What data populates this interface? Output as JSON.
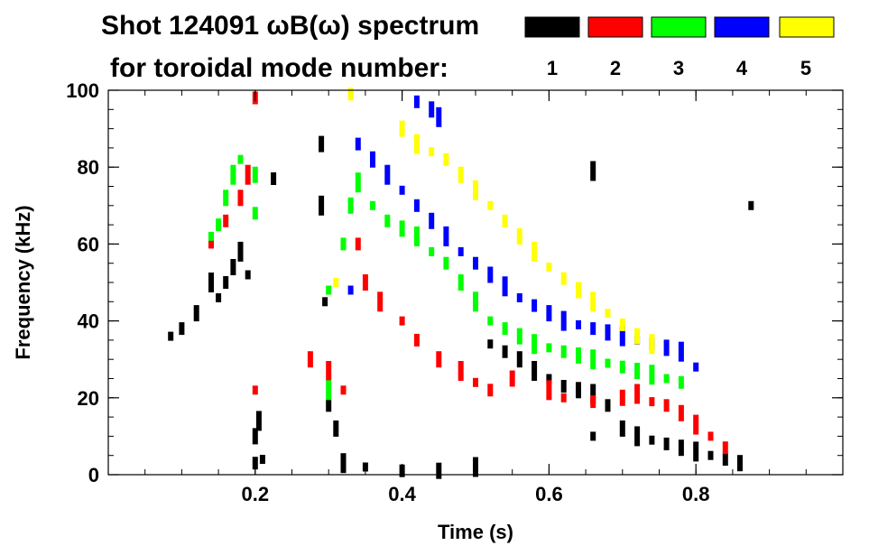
{
  "chart_data": {
    "type": "heatmap",
    "title_line1": "Shot 124091 ωB(ω) spectrum",
    "title_line2": "for toroidal mode number:",
    "xlabel": "Time (s)",
    "ylabel": "Frequency (kHz)",
    "xlim": [
      0.0,
      1.0
    ],
    "ylim": [
      0,
      100
    ],
    "x_ticks": [
      0.2,
      0.4,
      0.6,
      0.8
    ],
    "x_tick_labels": [
      "0.2",
      "0.4",
      "0.6",
      "0.8"
    ],
    "y_ticks": [
      0,
      20,
      40,
      60,
      80,
      100
    ],
    "y_tick_labels": [
      "0",
      "20",
      "40",
      "60",
      "80",
      "100"
    ],
    "x_minor_step": 0.05,
    "y_minor_step": 5,
    "legend": [
      {
        "label": "1",
        "color": "#000000"
      },
      {
        "label": "2",
        "color": "#ff0000"
      },
      {
        "label": "3",
        "color": "#00ff00"
      },
      {
        "label": "4",
        "color": "#0000ff"
      },
      {
        "label": "5",
        "color": "#ffff00"
      }
    ],
    "series": [
      {
        "name": "n=1",
        "mode": 1,
        "color": "#000000",
        "points": [
          [
            0.085,
            36
          ],
          [
            0.1,
            38
          ],
          [
            0.12,
            42
          ],
          [
            0.14,
            50
          ],
          [
            0.15,
            46
          ],
          [
            0.16,
            50
          ],
          [
            0.17,
            54
          ],
          [
            0.18,
            58
          ],
          [
            0.19,
            52
          ],
          [
            0.2,
            3
          ],
          [
            0.2,
            10
          ],
          [
            0.205,
            14
          ],
          [
            0.21,
            4
          ],
          [
            0.225,
            77
          ],
          [
            0.29,
            86
          ],
          [
            0.29,
            70
          ],
          [
            0.295,
            45
          ],
          [
            0.3,
            18
          ],
          [
            0.31,
            12
          ],
          [
            0.32,
            3
          ],
          [
            0.35,
            2
          ],
          [
            0.4,
            1
          ],
          [
            0.45,
            1
          ],
          [
            0.5,
            2
          ],
          [
            0.52,
            34
          ],
          [
            0.54,
            32
          ],
          [
            0.56,
            30
          ],
          [
            0.58,
            27
          ],
          [
            0.6,
            25
          ],
          [
            0.62,
            23
          ],
          [
            0.64,
            22
          ],
          [
            0.66,
            21
          ],
          [
            0.66,
            10
          ],
          [
            0.68,
            18
          ],
          [
            0.7,
            12
          ],
          [
            0.72,
            10
          ],
          [
            0.74,
            9
          ],
          [
            0.76,
            8
          ],
          [
            0.78,
            7
          ],
          [
            0.8,
            6
          ],
          [
            0.82,
            5
          ],
          [
            0.84,
            4
          ],
          [
            0.86,
            3
          ],
          [
            0.66,
            79
          ],
          [
            0.875,
            70
          ]
        ]
      },
      {
        "name": "n=2",
        "mode": 2,
        "color": "#ff0000",
        "points": [
          [
            0.14,
            60
          ],
          [
            0.16,
            66
          ],
          [
            0.18,
            72
          ],
          [
            0.19,
            78
          ],
          [
            0.2,
            22
          ],
          [
            0.2,
            98
          ],
          [
            0.275,
            30
          ],
          [
            0.3,
            27
          ],
          [
            0.32,
            22
          ],
          [
            0.34,
            60
          ],
          [
            0.35,
            50
          ],
          [
            0.37,
            45
          ],
          [
            0.4,
            40
          ],
          [
            0.42,
            35
          ],
          [
            0.45,
            30
          ],
          [
            0.48,
            27
          ],
          [
            0.5,
            24
          ],
          [
            0.52,
            22
          ],
          [
            0.55,
            25
          ],
          [
            0.6,
            22
          ],
          [
            0.62,
            20
          ],
          [
            0.66,
            19
          ],
          [
            0.7,
            20
          ],
          [
            0.72,
            21
          ],
          [
            0.74,
            19
          ],
          [
            0.76,
            18
          ],
          [
            0.78,
            16
          ],
          [
            0.8,
            13
          ],
          [
            0.82,
            10
          ],
          [
            0.84,
            7
          ]
        ]
      },
      {
        "name": "n=3",
        "mode": 3,
        "color": "#00ff00",
        "points": [
          [
            0.14,
            62
          ],
          [
            0.15,
            65
          ],
          [
            0.16,
            72
          ],
          [
            0.17,
            78
          ],
          [
            0.18,
            82
          ],
          [
            0.2,
            68
          ],
          [
            0.2,
            78
          ],
          [
            0.3,
            22
          ],
          [
            0.3,
            48
          ],
          [
            0.32,
            60
          ],
          [
            0.33,
            70
          ],
          [
            0.34,
            76
          ],
          [
            0.36,
            70
          ],
          [
            0.38,
            66
          ],
          [
            0.4,
            64
          ],
          [
            0.42,
            62
          ],
          [
            0.44,
            58
          ],
          [
            0.46,
            55
          ],
          [
            0.48,
            50
          ],
          [
            0.5,
            45
          ],
          [
            0.52,
            40
          ],
          [
            0.54,
            38
          ],
          [
            0.56,
            36
          ],
          [
            0.58,
            34
          ],
          [
            0.6,
            33
          ],
          [
            0.62,
            32
          ],
          [
            0.64,
            31
          ],
          [
            0.66,
            30
          ],
          [
            0.68,
            29
          ],
          [
            0.7,
            28
          ],
          [
            0.72,
            27
          ],
          [
            0.74,
            26
          ],
          [
            0.76,
            25
          ],
          [
            0.78,
            24
          ]
        ]
      },
      {
        "name": "n=4",
        "mode": 4,
        "color": "#0000ff",
        "points": [
          [
            0.33,
            48
          ],
          [
            0.34,
            86
          ],
          [
            0.36,
            82
          ],
          [
            0.38,
            78
          ],
          [
            0.4,
            74
          ],
          [
            0.42,
            70
          ],
          [
            0.44,
            66
          ],
          [
            0.46,
            62
          ],
          [
            0.48,
            58
          ],
          [
            0.5,
            55
          ],
          [
            0.52,
            52
          ],
          [
            0.54,
            49
          ],
          [
            0.56,
            46
          ],
          [
            0.58,
            44
          ],
          [
            0.6,
            42
          ],
          [
            0.62,
            40
          ],
          [
            0.64,
            39
          ],
          [
            0.66,
            38
          ],
          [
            0.68,
            37
          ],
          [
            0.7,
            36
          ],
          [
            0.72,
            35
          ],
          [
            0.74,
            34
          ],
          [
            0.76,
            33
          ],
          [
            0.78,
            32
          ],
          [
            0.8,
            28
          ],
          [
            0.42,
            97
          ],
          [
            0.44,
            95
          ],
          [
            0.45,
            93
          ]
        ]
      },
      {
        "name": "n=5",
        "mode": 5,
        "color": "#ffff00",
        "points": [
          [
            0.31,
            50
          ],
          [
            0.33,
            99
          ],
          [
            0.4,
            90
          ],
          [
            0.42,
            86
          ],
          [
            0.44,
            84
          ],
          [
            0.46,
            82
          ],
          [
            0.48,
            78
          ],
          [
            0.5,
            74
          ],
          [
            0.52,
            70
          ],
          [
            0.54,
            66
          ],
          [
            0.56,
            62
          ],
          [
            0.58,
            58
          ],
          [
            0.6,
            54
          ],
          [
            0.62,
            51
          ],
          [
            0.64,
            48
          ],
          [
            0.66,
            45
          ],
          [
            0.68,
            42
          ],
          [
            0.7,
            39
          ],
          [
            0.72,
            36
          ],
          [
            0.74,
            34
          ]
        ]
      }
    ]
  }
}
